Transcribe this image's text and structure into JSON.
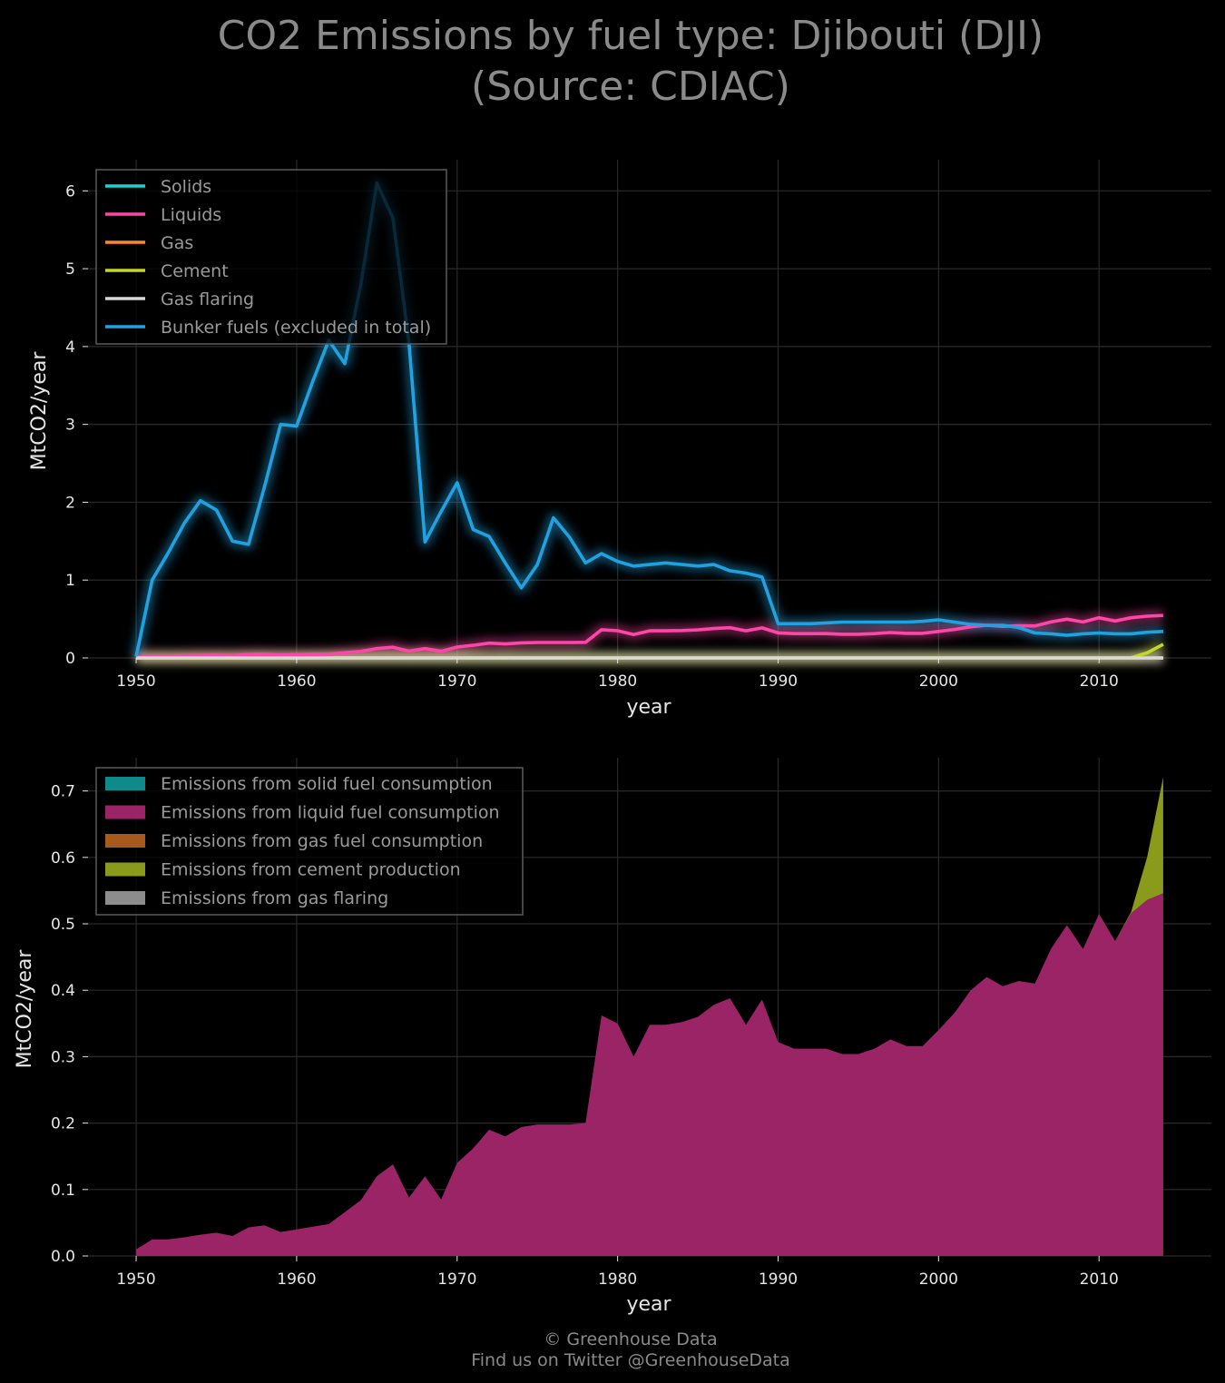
{
  "title_line1": "CO2 Emissions by fuel type: Djibouti (DJI)",
  "title_line2": "(Source: CDIAC)",
  "footer_line1": "© Greenhouse Data",
  "footer_line2": "Find us on Twitter @GreenhouseData",
  "colors": {
    "background": "#000000",
    "grid": "#2a2a2a",
    "solids": "#17d4d4",
    "liquids": "#ff45a8",
    "gas": "#ff8533",
    "cement": "#c4d62a",
    "flaring": "#d8d8d8",
    "bunker": "#1fa2e0",
    "area_solid": "#0f8a8a",
    "area_liquid": "#9b2466",
    "area_gas": "#a85a1e",
    "area_cement": "#8a9a1a",
    "area_flaring": "#8c8c8c"
  },
  "chart_data": [
    {
      "type": "line",
      "xlabel": "year",
      "ylabel": "MtCO2/year",
      "xlim": [
        1947,
        2017
      ],
      "ylim": [
        0,
        6.4
      ],
      "xticks": [
        1950,
        1960,
        1970,
        1980,
        1990,
        2000,
        2010
      ],
      "yticks": [
        0,
        1,
        2,
        3,
        4,
        5,
        6
      ],
      "grid": true,
      "legend_position": "top-left",
      "x": [
        1950,
        1951,
        1952,
        1953,
        1954,
        1955,
        1956,
        1957,
        1958,
        1959,
        1960,
        1961,
        1962,
        1963,
        1964,
        1965,
        1966,
        1967,
        1968,
        1969,
        1970,
        1971,
        1972,
        1973,
        1974,
        1975,
        1976,
        1977,
        1978,
        1979,
        1980,
        1981,
        1982,
        1983,
        1984,
        1985,
        1986,
        1987,
        1988,
        1989,
        1990,
        1991,
        1992,
        1993,
        1994,
        1995,
        1996,
        1997,
        1998,
        1999,
        2000,
        2001,
        2002,
        2003,
        2004,
        2005,
        2006,
        2007,
        2008,
        2009,
        2010,
        2011,
        2012,
        2013,
        2014
      ],
      "series": [
        {
          "name": "Solids",
          "color_key": "solids",
          "values": [
            0,
            0,
            0,
            0,
            0,
            0,
            0,
            0,
            0,
            0,
            0,
            0,
            0,
            0,
            0,
            0,
            0,
            0,
            0,
            0,
            0,
            0,
            0,
            0,
            0,
            0,
            0,
            0,
            0,
            0,
            0,
            0,
            0,
            0,
            0,
            0,
            0,
            0,
            0,
            0,
            0,
            0,
            0,
            0,
            0,
            0,
            0,
            0,
            0,
            0,
            0,
            0,
            0,
            0,
            0,
            0,
            0,
            0,
            0,
            0,
            0,
            0,
            0,
            0,
            0
          ]
        },
        {
          "name": "Liquids",
          "color_key": "liquids",
          "values": [
            0.01,
            0.025,
            0.025,
            0.028,
            0.032,
            0.035,
            0.03,
            0.043,
            0.046,
            0.036,
            0.04,
            0.044,
            0.048,
            0.066,
            0.084,
            0.12,
            0.138,
            0.088,
            0.12,
            0.085,
            0.14,
            0.162,
            0.19,
            0.18,
            0.194,
            0.198,
            0.198,
            0.198,
            0.2,
            0.362,
            0.35,
            0.3,
            0.348,
            0.348,
            0.352,
            0.36,
            0.378,
            0.388,
            0.348,
            0.386,
            0.322,
            0.312,
            0.312,
            0.312,
            0.304,
            0.304,
            0.312,
            0.326,
            0.316,
            0.316,
            0.34,
            0.366,
            0.4,
            0.42,
            0.406,
            0.414,
            0.41,
            0.462,
            0.498,
            0.462,
            0.515,
            0.474,
            0.516,
            0.536,
            0.546
          ]
        },
        {
          "name": "Gas",
          "color_key": "gas",
          "values": [
            0,
            0,
            0,
            0,
            0,
            0,
            0,
            0,
            0,
            0,
            0,
            0,
            0,
            0,
            0,
            0,
            0,
            0,
            0,
            0,
            0,
            0,
            0,
            0,
            0,
            0,
            0,
            0,
            0,
            0,
            0,
            0,
            0,
            0,
            0,
            0,
            0,
            0,
            0,
            0,
            0,
            0,
            0,
            0,
            0,
            0,
            0,
            0,
            0,
            0,
            0,
            0,
            0,
            0,
            0,
            0,
            0,
            0,
            0,
            0,
            0,
            0,
            0,
            0,
            0
          ]
        },
        {
          "name": "Cement",
          "color_key": "cement",
          "values": [
            0,
            0,
            0,
            0,
            0,
            0,
            0,
            0,
            0,
            0,
            0,
            0,
            0,
            0,
            0,
            0,
            0,
            0,
            0,
            0,
            0,
            0,
            0,
            0,
            0,
            0,
            0,
            0,
            0,
            0,
            0,
            0,
            0,
            0,
            0,
            0,
            0,
            0,
            0,
            0,
            0,
            0,
            0,
            0,
            0,
            0,
            0,
            0,
            0,
            0,
            0,
            0,
            0,
            0,
            0,
            0,
            0,
            0,
            0,
            0,
            0,
            0,
            0.002,
            0.065,
            0.175
          ]
        },
        {
          "name": "Gas flaring",
          "color_key": "flaring",
          "values": [
            0,
            0,
            0,
            0,
            0,
            0,
            0,
            0,
            0,
            0,
            0,
            0,
            0,
            0,
            0,
            0,
            0,
            0,
            0,
            0,
            0,
            0,
            0,
            0,
            0,
            0,
            0,
            0,
            0,
            0,
            0,
            0,
            0,
            0,
            0,
            0,
            0,
            0,
            0,
            0,
            0,
            0,
            0,
            0,
            0,
            0,
            0,
            0,
            0,
            0,
            0,
            0,
            0,
            0,
            0,
            0,
            0,
            0,
            0,
            0,
            0,
            0,
            0,
            0,
            0
          ]
        },
        {
          "name": "Bunker fuels (excluded in total)",
          "color_key": "bunker",
          "values": [
            0.02,
            1.0,
            1.35,
            1.73,
            2.02,
            1.9,
            1.5,
            1.46,
            2.2,
            3.0,
            2.98,
            3.55,
            4.08,
            3.78,
            4.8,
            6.1,
            5.65,
            4.05,
            1.49,
            1.88,
            2.25,
            1.65,
            1.56,
            1.22,
            0.9,
            1.2,
            1.8,
            1.55,
            1.22,
            1.34,
            1.24,
            1.18,
            1.2,
            1.22,
            1.2,
            1.18,
            1.2,
            1.12,
            1.09,
            1.04,
            0.44,
            0.44,
            0.44,
            0.45,
            0.46,
            0.46,
            0.46,
            0.46,
            0.46,
            0.47,
            0.49,
            0.46,
            0.43,
            0.42,
            0.42,
            0.39,
            0.32,
            0.31,
            0.29,
            0.31,
            0.32,
            0.31,
            0.31,
            0.33,
            0.34
          ]
        }
      ]
    },
    {
      "type": "area",
      "stacked": true,
      "xlabel": "year",
      "ylabel": "MtCO2/year",
      "xlim": [
        1947,
        2017
      ],
      "ylim": [
        0,
        0.75
      ],
      "xticks": [
        1950,
        1960,
        1970,
        1980,
        1990,
        2000,
        2010
      ],
      "yticks": [
        "0.0",
        "0.1",
        "0.2",
        "0.3",
        "0.4",
        "0.5",
        "0.6",
        "0.7"
      ],
      "grid": true,
      "legend_position": "top-left",
      "x": [
        1950,
        1951,
        1952,
        1953,
        1954,
        1955,
        1956,
        1957,
        1958,
        1959,
        1960,
        1961,
        1962,
        1963,
        1964,
        1965,
        1966,
        1967,
        1968,
        1969,
        1970,
        1971,
        1972,
        1973,
        1974,
        1975,
        1976,
        1977,
        1978,
        1979,
        1980,
        1981,
        1982,
        1983,
        1984,
        1985,
        1986,
        1987,
        1988,
        1989,
        1990,
        1991,
        1992,
        1993,
        1994,
        1995,
        1996,
        1997,
        1998,
        1999,
        2000,
        2001,
        2002,
        2003,
        2004,
        2005,
        2006,
        2007,
        2008,
        2009,
        2010,
        2011,
        2012,
        2013,
        2014
      ],
      "series": [
        {
          "name": "Emissions from solid fuel consumption",
          "color_key": "area_solid",
          "values": [
            0,
            0,
            0,
            0,
            0,
            0,
            0,
            0,
            0,
            0,
            0,
            0,
            0,
            0,
            0,
            0,
            0,
            0,
            0,
            0,
            0,
            0,
            0,
            0,
            0,
            0,
            0,
            0,
            0,
            0,
            0,
            0,
            0,
            0,
            0,
            0,
            0,
            0,
            0,
            0,
            0,
            0,
            0,
            0,
            0,
            0,
            0,
            0,
            0,
            0,
            0,
            0,
            0,
            0,
            0,
            0,
            0,
            0,
            0,
            0,
            0,
            0,
            0,
            0,
            0
          ]
        },
        {
          "name": "Emissions from liquid fuel consumption",
          "color_key": "area_liquid",
          "values": [
            0.01,
            0.025,
            0.025,
            0.028,
            0.032,
            0.035,
            0.03,
            0.043,
            0.046,
            0.036,
            0.04,
            0.044,
            0.048,
            0.066,
            0.084,
            0.12,
            0.138,
            0.088,
            0.12,
            0.085,
            0.14,
            0.162,
            0.19,
            0.18,
            0.194,
            0.198,
            0.198,
            0.198,
            0.2,
            0.362,
            0.35,
            0.3,
            0.348,
            0.348,
            0.352,
            0.36,
            0.378,
            0.388,
            0.348,
            0.386,
            0.322,
            0.312,
            0.312,
            0.312,
            0.304,
            0.304,
            0.312,
            0.326,
            0.316,
            0.316,
            0.34,
            0.366,
            0.4,
            0.42,
            0.406,
            0.414,
            0.41,
            0.462,
            0.498,
            0.462,
            0.515,
            0.474,
            0.516,
            0.536,
            0.546
          ]
        },
        {
          "name": "Emissions from gas fuel consumption",
          "color_key": "area_gas",
          "values": [
            0,
            0,
            0,
            0,
            0,
            0,
            0,
            0,
            0,
            0,
            0,
            0,
            0,
            0,
            0,
            0,
            0,
            0,
            0,
            0,
            0,
            0,
            0,
            0,
            0,
            0,
            0,
            0,
            0,
            0,
            0,
            0,
            0,
            0,
            0,
            0,
            0,
            0,
            0,
            0,
            0,
            0,
            0,
            0,
            0,
            0,
            0,
            0,
            0,
            0,
            0,
            0,
            0,
            0,
            0,
            0,
            0,
            0,
            0,
            0,
            0,
            0,
            0,
            0,
            0
          ]
        },
        {
          "name": "Emissions from cement production",
          "color_key": "area_cement",
          "values": [
            0,
            0,
            0,
            0,
            0,
            0,
            0,
            0,
            0,
            0,
            0,
            0,
            0,
            0,
            0,
            0,
            0,
            0,
            0,
            0,
            0,
            0,
            0,
            0,
            0,
            0,
            0,
            0,
            0,
            0,
            0,
            0,
            0,
            0,
            0,
            0,
            0,
            0,
            0,
            0,
            0,
            0,
            0,
            0,
            0,
            0,
            0,
            0,
            0,
            0,
            0,
            0,
            0,
            0,
            0,
            0,
            0,
            0,
            0,
            0,
            0,
            0,
            0.002,
            0.065,
            0.175
          ]
        },
        {
          "name": "Emissions from gas flaring",
          "color_key": "area_flaring",
          "values": [
            0,
            0,
            0,
            0,
            0,
            0,
            0,
            0,
            0,
            0,
            0,
            0,
            0,
            0,
            0,
            0,
            0,
            0,
            0,
            0,
            0,
            0,
            0,
            0,
            0,
            0,
            0,
            0,
            0,
            0,
            0,
            0,
            0,
            0,
            0,
            0,
            0,
            0,
            0,
            0,
            0,
            0,
            0,
            0,
            0,
            0,
            0,
            0,
            0,
            0,
            0,
            0,
            0,
            0,
            0,
            0,
            0,
            0,
            0,
            0,
            0,
            0,
            0,
            0,
            0
          ]
        }
      ]
    }
  ]
}
